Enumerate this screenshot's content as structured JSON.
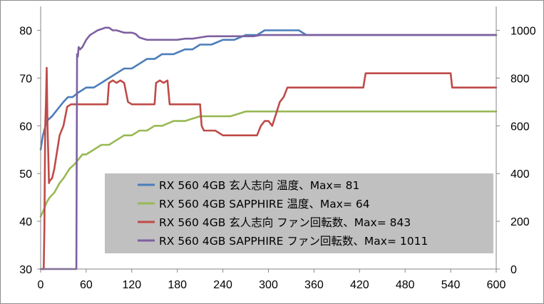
{
  "chart_data": {
    "type": "line",
    "title": "",
    "xlabel": "",
    "ylabel_left": "",
    "ylabel_right": "",
    "xlim": [
      0,
      600
    ],
    "ylim_left": [
      30,
      85
    ],
    "ylim_right": [
      0,
      1100
    ],
    "x_ticks": [
      "0",
      "60",
      "120",
      "180",
      "240",
      "300",
      "360",
      "420",
      "480",
      "540",
      "600"
    ],
    "y_left_ticks": [
      "30",
      "40",
      "50",
      "60",
      "70",
      "80"
    ],
    "y_right_ticks": [
      "0",
      "200",
      "400",
      "600",
      "800",
      "1000"
    ],
    "grid": false,
    "legend_position": "inside-lower-center",
    "series": [
      {
        "name": "RX 560 4GB 玄人志向 温度、Max= 81",
        "axis": "left",
        "color": "#4a7ebb",
        "points": [
          [
            0,
            55
          ],
          [
            3,
            58
          ],
          [
            8,
            61
          ],
          [
            15,
            62
          ],
          [
            20,
            63
          ],
          [
            25,
            64
          ],
          [
            30,
            65
          ],
          [
            36,
            66
          ],
          [
            42,
            66
          ],
          [
            50,
            67
          ],
          [
            60,
            68
          ],
          [
            70,
            68
          ],
          [
            80,
            69
          ],
          [
            90,
            70
          ],
          [
            100,
            71
          ],
          [
            110,
            72
          ],
          [
            120,
            72
          ],
          [
            130,
            73
          ],
          [
            140,
            74
          ],
          [
            150,
            74
          ],
          [
            160,
            75
          ],
          [
            175,
            75
          ],
          [
            190,
            76
          ],
          [
            200,
            76
          ],
          [
            210,
            77
          ],
          [
            225,
            77
          ],
          [
            240,
            78
          ],
          [
            255,
            78
          ],
          [
            270,
            79
          ],
          [
            285,
            79
          ],
          [
            295,
            80
          ],
          [
            320,
            80
          ],
          [
            340,
            80
          ],
          [
            350,
            79
          ],
          [
            380,
            79
          ],
          [
            400,
            79
          ],
          [
            430,
            79
          ],
          [
            450,
            79
          ],
          [
            480,
            79
          ],
          [
            510,
            79
          ],
          [
            540,
            79
          ],
          [
            570,
            79
          ],
          [
            600,
            79
          ]
        ]
      },
      {
        "name": "RX 560 4GB SAPPHIRE 温度、Max= 64",
        "axis": "left",
        "color": "#98b954",
        "points": [
          [
            0,
            41
          ],
          [
            3,
            42
          ],
          [
            8,
            44
          ],
          [
            12,
            45
          ],
          [
            18,
            46
          ],
          [
            25,
            48
          ],
          [
            30,
            49
          ],
          [
            38,
            51
          ],
          [
            45,
            52
          ],
          [
            50,
            53
          ],
          [
            55,
            54
          ],
          [
            60,
            54
          ],
          [
            70,
            55
          ],
          [
            80,
            56
          ],
          [
            90,
            56
          ],
          [
            100,
            57
          ],
          [
            110,
            58
          ],
          [
            120,
            58
          ],
          [
            130,
            59
          ],
          [
            140,
            59
          ],
          [
            150,
            60
          ],
          [
            160,
            60
          ],
          [
            175,
            61
          ],
          [
            190,
            61
          ],
          [
            210,
            62
          ],
          [
            230,
            62
          ],
          [
            250,
            62
          ],
          [
            270,
            63
          ],
          [
            300,
            63
          ],
          [
            330,
            63
          ],
          [
            360,
            63
          ],
          [
            390,
            63
          ],
          [
            420,
            63
          ],
          [
            450,
            63
          ],
          [
            480,
            63
          ],
          [
            510,
            63
          ],
          [
            540,
            63
          ],
          [
            570,
            63
          ],
          [
            600,
            63
          ]
        ]
      },
      {
        "name": "RX 560 4GB 玄人志向 ファン回転数、Max= 843",
        "axis": "right",
        "color": "#be4b48",
        "points": [
          [
            0,
            0
          ],
          [
            4,
            0
          ],
          [
            5,
            180
          ],
          [
            6,
            600
          ],
          [
            7,
            700
          ],
          [
            8,
            843
          ],
          [
            9,
            600
          ],
          [
            10,
            480
          ],
          [
            11,
            360
          ],
          [
            12,
            370
          ],
          [
            15,
            380
          ],
          [
            18,
            420
          ],
          [
            20,
            460
          ],
          [
            25,
            560
          ],
          [
            30,
            600
          ],
          [
            35,
            680
          ],
          [
            40,
            690
          ],
          [
            50,
            690
          ],
          [
            60,
            690
          ],
          [
            70,
            690
          ],
          [
            80,
            690
          ],
          [
            88,
            690
          ],
          [
            90,
            780
          ],
          [
            95,
            790
          ],
          [
            100,
            780
          ],
          [
            105,
            790
          ],
          [
            110,
            780
          ],
          [
            115,
            700
          ],
          [
            120,
            690
          ],
          [
            130,
            690
          ],
          [
            140,
            690
          ],
          [
            145,
            690
          ],
          [
            150,
            690
          ],
          [
            152,
            780
          ],
          [
            157,
            790
          ],
          [
            162,
            780
          ],
          [
            167,
            790
          ],
          [
            170,
            690
          ],
          [
            175,
            690
          ],
          [
            180,
            690
          ],
          [
            190,
            690
          ],
          [
            200,
            690
          ],
          [
            210,
            690
          ],
          [
            212,
            600
          ],
          [
            215,
            580
          ],
          [
            220,
            580
          ],
          [
            230,
            580
          ],
          [
            240,
            560
          ],
          [
            250,
            560
          ],
          [
            260,
            560
          ],
          [
            270,
            560
          ],
          [
            280,
            560
          ],
          [
            285,
            560
          ],
          [
            290,
            600
          ],
          [
            295,
            620
          ],
          [
            300,
            620
          ],
          [
            305,
            600
          ],
          [
            310,
            650
          ],
          [
            315,
            700
          ],
          [
            320,
            720
          ],
          [
            325,
            760
          ],
          [
            330,
            760
          ],
          [
            340,
            760
          ],
          [
            350,
            760
          ],
          [
            360,
            760
          ],
          [
            370,
            760
          ],
          [
            380,
            760
          ],
          [
            390,
            760
          ],
          [
            400,
            760
          ],
          [
            410,
            760
          ],
          [
            420,
            760
          ],
          [
            425,
            760
          ],
          [
            428,
            820
          ],
          [
            440,
            820
          ],
          [
            450,
            820
          ],
          [
            460,
            820
          ],
          [
            465,
            820
          ],
          [
            470,
            820
          ],
          [
            475,
            820
          ],
          [
            480,
            820
          ],
          [
            485,
            820
          ],
          [
            490,
            820
          ],
          [
            500,
            820
          ],
          [
            510,
            820
          ],
          [
            520,
            820
          ],
          [
            530,
            820
          ],
          [
            535,
            820
          ],
          [
            540,
            820
          ],
          [
            542,
            760
          ],
          [
            555,
            760
          ],
          [
            560,
            760
          ],
          [
            570,
            760
          ],
          [
            575,
            760
          ],
          [
            580,
            760
          ],
          [
            585,
            760
          ],
          [
            590,
            760
          ],
          [
            595,
            760
          ],
          [
            600,
            760
          ]
        ]
      },
      {
        "name": "RX 560 4GB SAPPHIRE ファン回転数、Max= 1011",
        "axis": "right",
        "color": "#7d60a0",
        "points": [
          [
            0,
            0
          ],
          [
            10,
            0
          ],
          [
            20,
            0
          ],
          [
            30,
            0
          ],
          [
            40,
            0
          ],
          [
            47,
            0
          ],
          [
            48,
            900
          ],
          [
            49,
            890
          ],
          [
            50,
            930
          ],
          [
            52,
            920
          ],
          [
            55,
            930
          ],
          [
            60,
            960
          ],
          [
            65,
            980
          ],
          [
            70,
            990
          ],
          [
            75,
            1000
          ],
          [
            80,
            1005
          ],
          [
            85,
            1011
          ],
          [
            90,
            1011
          ],
          [
            95,
            1000
          ],
          [
            100,
            1000
          ],
          [
            110,
            990
          ],
          [
            120,
            990
          ],
          [
            125,
            985
          ],
          [
            130,
            970
          ],
          [
            135,
            965
          ],
          [
            140,
            960
          ],
          [
            150,
            960
          ],
          [
            160,
            960
          ],
          [
            170,
            960
          ],
          [
            180,
            960
          ],
          [
            190,
            965
          ],
          [
            200,
            965
          ],
          [
            210,
            970
          ],
          [
            220,
            975
          ],
          [
            230,
            975
          ],
          [
            240,
            975
          ],
          [
            250,
            975
          ],
          [
            260,
            975
          ],
          [
            270,
            975
          ],
          [
            280,
            975
          ],
          [
            290,
            980
          ],
          [
            300,
            980
          ],
          [
            310,
            980
          ],
          [
            320,
            980
          ],
          [
            330,
            980
          ],
          [
            340,
            980
          ],
          [
            350,
            980
          ],
          [
            360,
            980
          ],
          [
            370,
            980
          ],
          [
            380,
            980
          ],
          [
            390,
            980
          ],
          [
            400,
            980
          ],
          [
            410,
            980
          ],
          [
            420,
            980
          ],
          [
            430,
            980
          ],
          [
            440,
            980
          ],
          [
            450,
            980
          ],
          [
            460,
            980
          ],
          [
            470,
            980
          ],
          [
            480,
            980
          ],
          [
            490,
            980
          ],
          [
            500,
            980
          ],
          [
            510,
            980
          ],
          [
            520,
            980
          ],
          [
            530,
            980
          ],
          [
            540,
            980
          ],
          [
            550,
            980
          ],
          [
            560,
            980
          ],
          [
            570,
            980
          ],
          [
            580,
            980
          ],
          [
            590,
            980
          ],
          [
            600,
            980
          ]
        ]
      }
    ]
  }
}
